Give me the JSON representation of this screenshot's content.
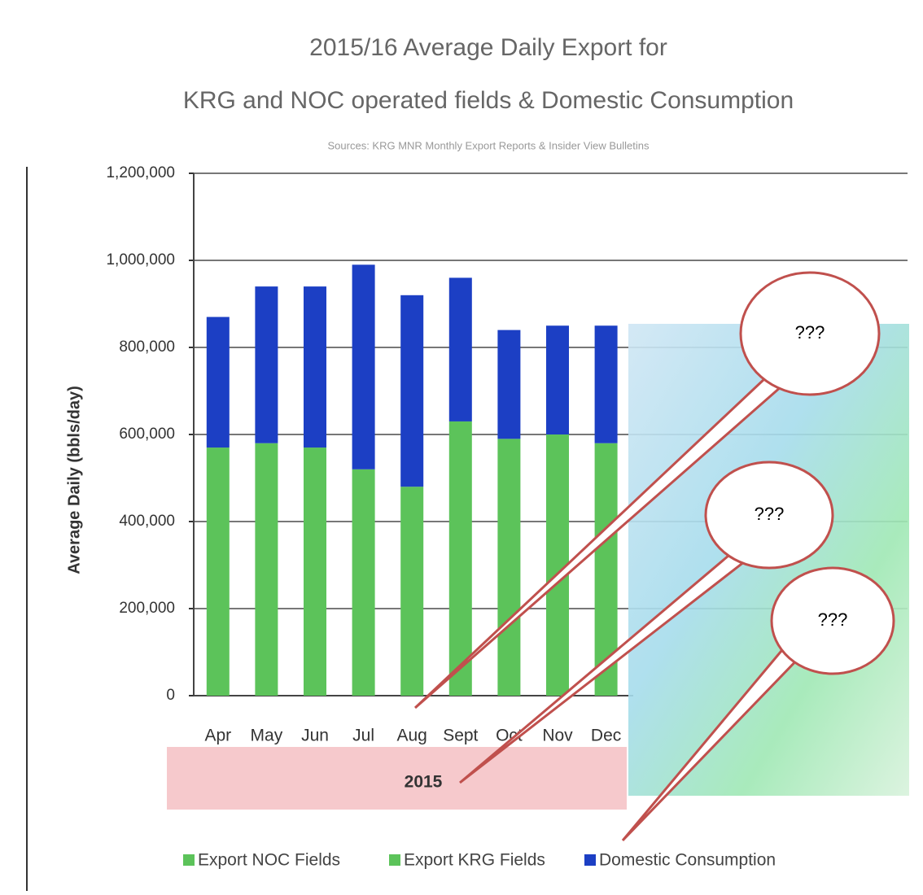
{
  "chart_data": {
    "type": "bar",
    "stacked": true,
    "title": "2015/16 Average Daily Export for",
    "subtitle": "KRG and NOC operated fields & Domestic Consumption",
    "source": "Sources: KRG MNR Monthly Export Reports & Insider View Bulletins",
    "y_label": "Average Daily (bbls/day)",
    "group_label": "2015",
    "categories": [
      "Apr",
      "May",
      "Jun",
      "Jul",
      "Aug",
      "Sept",
      "Oct",
      "Nov",
      "Dec"
    ],
    "series": [
      {
        "name": "Export NOC Fields",
        "color": "#5cc35a",
        "values": [
          null,
          null,
          null,
          null,
          null,
          null,
          null,
          null,
          null
        ]
      },
      {
        "name": "Export KRG Fields",
        "color": "#5cc35a",
        "values": [
          570000,
          580000,
          570000,
          520000,
          480000,
          630000,
          590000,
          600000,
          580000
        ]
      },
      {
        "name": "Domestic Consumption",
        "color": "#1c3fc4",
        "values": [
          300000,
          360000,
          370000,
          470000,
          440000,
          330000,
          250000,
          250000,
          270000
        ]
      }
    ],
    "ylim": [
      0,
      1200000
    ],
    "yticks": [
      0,
      {
        "value": 200000,
        "label": "200,000"
      },
      {
        "value": 400000,
        "label": "400,000"
      },
      {
        "value": 600000,
        "label": "600,000"
      },
      {
        "value": 800000,
        "label": "800,000"
      },
      {
        "value": 1000000,
        "label": "1,000,000"
      },
      {
        "value": 1200000,
        "label": "1,200,000"
      }
    ],
    "grid": true,
    "callouts": [
      "???",
      "???",
      "???"
    ]
  }
}
